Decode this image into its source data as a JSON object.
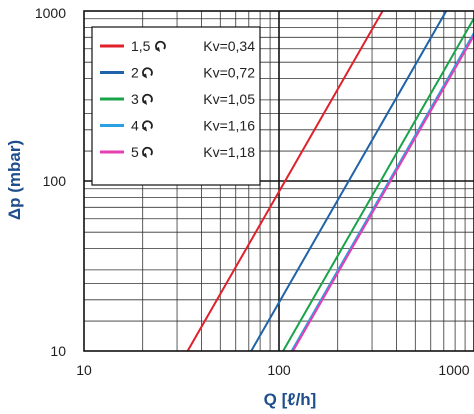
{
  "chart_data": {
    "type": "line",
    "xlabel": "Q [ℓ/h]",
    "ylabel": "Δp (mbar)",
    "x_scale": "log",
    "y_scale": "log",
    "xlim": [
      10,
      1000
    ],
    "ylim": [
      10,
      1000
    ],
    "x_ticks": [
      "10",
      "100",
      "1000"
    ],
    "y_ticks": [
      "10",
      "100",
      "1000"
    ],
    "grid": true,
    "legend_position": "top-left",
    "series": [
      {
        "name": "1,5",
        "turn_icon": "turn-arrow-icon",
        "kv": "Kv=0,34",
        "color": "#e0202b",
        "x": [
          34,
          340
        ],
        "y": [
          10,
          1000
        ]
      },
      {
        "name": "2",
        "turn_icon": "turn-arrow-icon",
        "kv": "Kv=0,72",
        "color": "#1f63a8",
        "x": [
          72,
          720
        ],
        "y": [
          10,
          1000
        ]
      },
      {
        "name": "3",
        "turn_icon": "turn-arrow-icon",
        "kv": "Kv=1,05",
        "color": "#1aa34a",
        "x": [
          105,
          1000
        ],
        "y": [
          10,
          907
        ]
      },
      {
        "name": "4",
        "turn_icon": "turn-arrow-icon",
        "kv": "Kv=1,16",
        "color": "#2aa0e0",
        "x": [
          116,
          1000
        ],
        "y": [
          10,
          743
        ]
      },
      {
        "name": "5",
        "turn_icon": "turn-arrow-icon",
        "kv": "Kv=1,18",
        "color": "#e63fb4",
        "x": [
          118,
          1000
        ],
        "y": [
          10,
          718
        ]
      }
    ]
  }
}
